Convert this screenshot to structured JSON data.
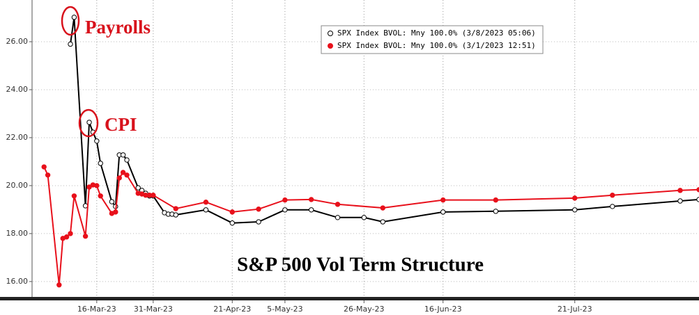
{
  "chart_data": {
    "type": "line",
    "title": "S&P 500 Vol Term Structure",
    "annotations": [
      "Payrolls",
      "CPI"
    ],
    "xlim": [
      "2023-02-27",
      "2023-08-23"
    ],
    "xticks": [
      {
        "value": "2023-03-16",
        "label": "16-Mar-23"
      },
      {
        "value": "2023-03-31",
        "label": "31-Mar-23"
      },
      {
        "value": "2023-04-21",
        "label": "21-Apr-23"
      },
      {
        "value": "2023-05-05",
        "label": "5-May-23"
      },
      {
        "value": "2023-05-26",
        "label": "26-May-23"
      },
      {
        "value": "2023-06-16",
        "label": "16-Jun-23"
      },
      {
        "value": "2023-07-21",
        "label": "21-Jul-23"
      }
    ],
    "ylim": [
      15.33,
      27.74
    ],
    "yticks": [
      {
        "value": 16,
        "label": "16.00"
      },
      {
        "value": 18,
        "label": "18.00"
      },
      {
        "value": 20,
        "label": "20.00"
      },
      {
        "value": 22,
        "label": "22.00"
      },
      {
        "value": 24,
        "label": "24.00"
      },
      {
        "value": 26,
        "label": "26.00"
      }
    ],
    "grid": true,
    "legend": "upper-center",
    "series": [
      {
        "name": "SPX Index BVOL: Mny 100.0% (3/8/2023 05:06)",
        "color": "#000000",
        "marker": "open",
        "x": [
          "2023-03-09",
          "2023-03-10",
          "2023-03-13",
          "2023-03-14",
          "2023-03-15",
          "2023-03-16",
          "2023-03-17",
          "2023-03-20",
          "2023-03-21",
          "2023-03-22",
          "2023-03-23",
          "2023-03-24",
          "2023-03-27",
          "2023-03-28",
          "2023-03-29",
          "2023-03-30",
          "2023-03-31",
          "2023-04-03",
          "2023-04-04",
          "2023-04-05",
          "2023-04-06",
          "2023-04-14",
          "2023-04-21",
          "2023-04-28",
          "2023-05-05",
          "2023-05-12",
          "2023-05-19",
          "2023-05-26",
          "2023-05-31",
          "2023-06-16",
          "2023-06-30",
          "2023-07-21",
          "2023-07-31",
          "2023-08-18",
          "2023-08-23"
        ],
        "values": [
          25.9,
          27.02,
          19.16,
          22.64,
          22.23,
          21.86,
          20.93,
          19.33,
          19.13,
          21.28,
          21.28,
          21.07,
          19.91,
          19.8,
          19.68,
          19.57,
          19.57,
          18.87,
          18.81,
          18.81,
          18.78,
          18.99,
          18.44,
          18.49,
          18.99,
          18.99,
          18.67,
          18.67,
          18.49,
          18.9,
          18.93,
          18.99,
          19.13,
          19.36,
          19.42
        ]
      },
      {
        "name": "SPX Index BVOL: Mny 100.0% (3/1/2023 12:51)",
        "color": "#e8101b",
        "marker": "filled",
        "x": [
          "2023-03-02",
          "2023-03-03",
          "2023-03-06",
          "2023-03-07",
          "2023-03-08",
          "2023-03-09",
          "2023-03-10",
          "2023-03-13",
          "2023-03-14",
          "2023-03-15",
          "2023-03-16",
          "2023-03-17",
          "2023-03-20",
          "2023-03-21",
          "2023-03-22",
          "2023-03-23",
          "2023-03-24",
          "2023-03-27",
          "2023-03-28",
          "2023-03-29",
          "2023-03-30",
          "2023-03-31",
          "2023-04-06",
          "2023-04-14",
          "2023-04-21",
          "2023-04-28",
          "2023-05-05",
          "2023-05-12",
          "2023-05-19",
          "2023-05-31",
          "2023-06-16",
          "2023-06-30",
          "2023-07-21",
          "2023-07-31",
          "2023-08-18",
          "2023-08-23"
        ],
        "values": [
          20.78,
          20.44,
          15.86,
          17.8,
          17.86,
          18.0,
          19.57,
          17.89,
          19.94,
          20.03,
          20.0,
          19.57,
          18.84,
          18.9,
          20.32,
          20.55,
          20.44,
          19.68,
          19.65,
          19.6,
          19.6,
          19.6,
          19.04,
          19.31,
          18.9,
          19.02,
          19.4,
          19.42,
          19.22,
          19.07,
          19.4,
          19.4,
          19.48,
          19.6,
          19.8,
          19.83
        ]
      }
    ]
  }
}
